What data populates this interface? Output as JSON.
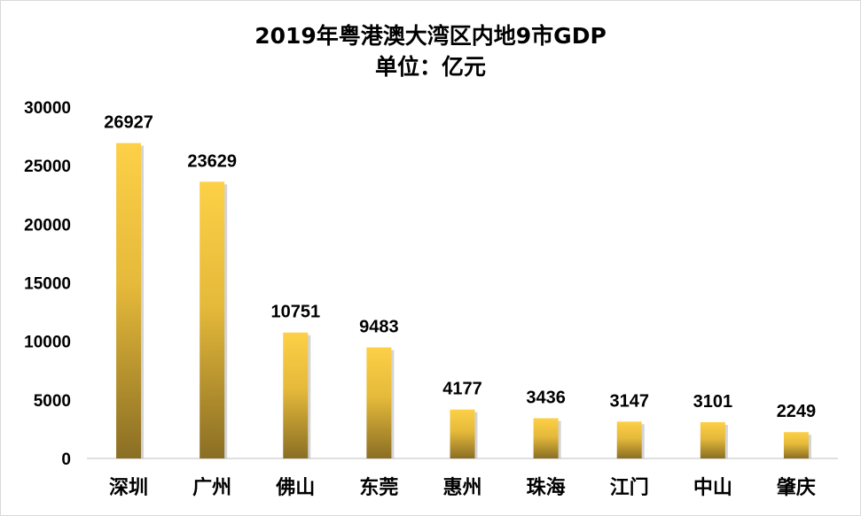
{
  "chart_data": {
    "type": "bar",
    "title": "2019年粤港澳大湾区内地9市GDP",
    "subtitle": "单位：亿元",
    "categories": [
      "深圳",
      "广州",
      "佛山",
      "东莞",
      "惠州",
      "珠海",
      "江门",
      "中山",
      "肇庆"
    ],
    "values": [
      26927,
      23629,
      10751,
      9483,
      4177,
      3436,
      3147,
      3101,
      2249
    ],
    "ylim": [
      0,
      30000
    ],
    "yticks": [
      0,
      5000,
      10000,
      15000,
      20000,
      25000,
      30000
    ],
    "xlabel": "",
    "ylabel": "",
    "grid": false,
    "legend": "none",
    "colors": {
      "bar_top": "#fdd047",
      "bar_bottom": "#8a6e24",
      "shadow": "#b0b0b0"
    }
  }
}
